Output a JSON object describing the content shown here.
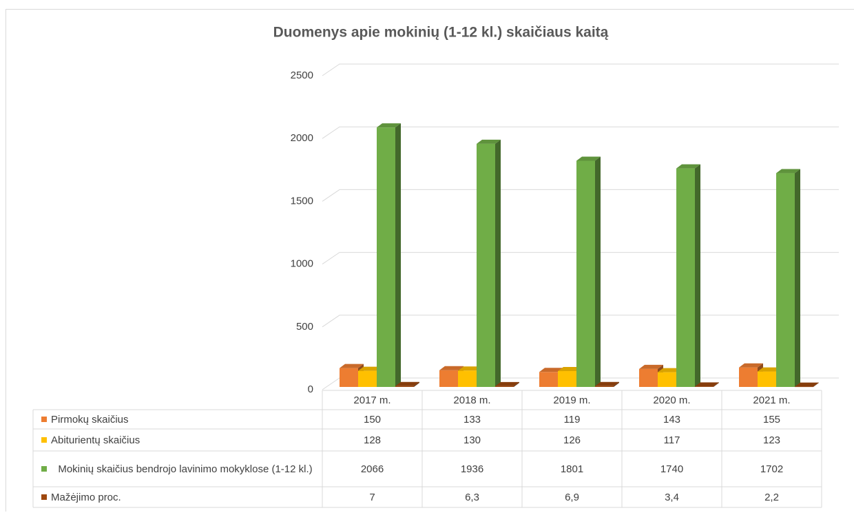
{
  "chart_data": {
    "type": "bar3d",
    "title": "Duomenys apie mokinių (1-12 kl.) skaičiaus kaitą",
    "categories": [
      "2017 m.",
      "2018 m.",
      "2019 m.",
      "2020 m.",
      "2021 m."
    ],
    "series": [
      {
        "name": "Pirmokų skaičius",
        "color": "#ED7D31",
        "values": [
          150,
          133,
          119,
          143,
          155
        ]
      },
      {
        "name": "Abiturientų skaičius",
        "color": "#FFC000",
        "values": [
          128,
          130,
          126,
          117,
          123
        ]
      },
      {
        "name": "Mokinių skaičius bendrojo lavinimo mokyklose (1-12 kl.)",
        "color": "#70AD47",
        "values": [
          2066,
          1936,
          1801,
          1740,
          1702
        ]
      },
      {
        "name": "Mažėjimo proc.",
        "color": "#9E480E",
        "values": [
          7,
          6.3,
          6.9,
          3.4,
          2.2
        ],
        "value_labels": [
          "7",
          "6,3",
          "6,9",
          "3,4",
          "2,2"
        ]
      }
    ],
    "ylim": [
      0,
      2500
    ],
    "yticks": [
      0,
      500,
      1000,
      1500,
      2000,
      2500
    ],
    "grid": true,
    "data_table": true
  }
}
